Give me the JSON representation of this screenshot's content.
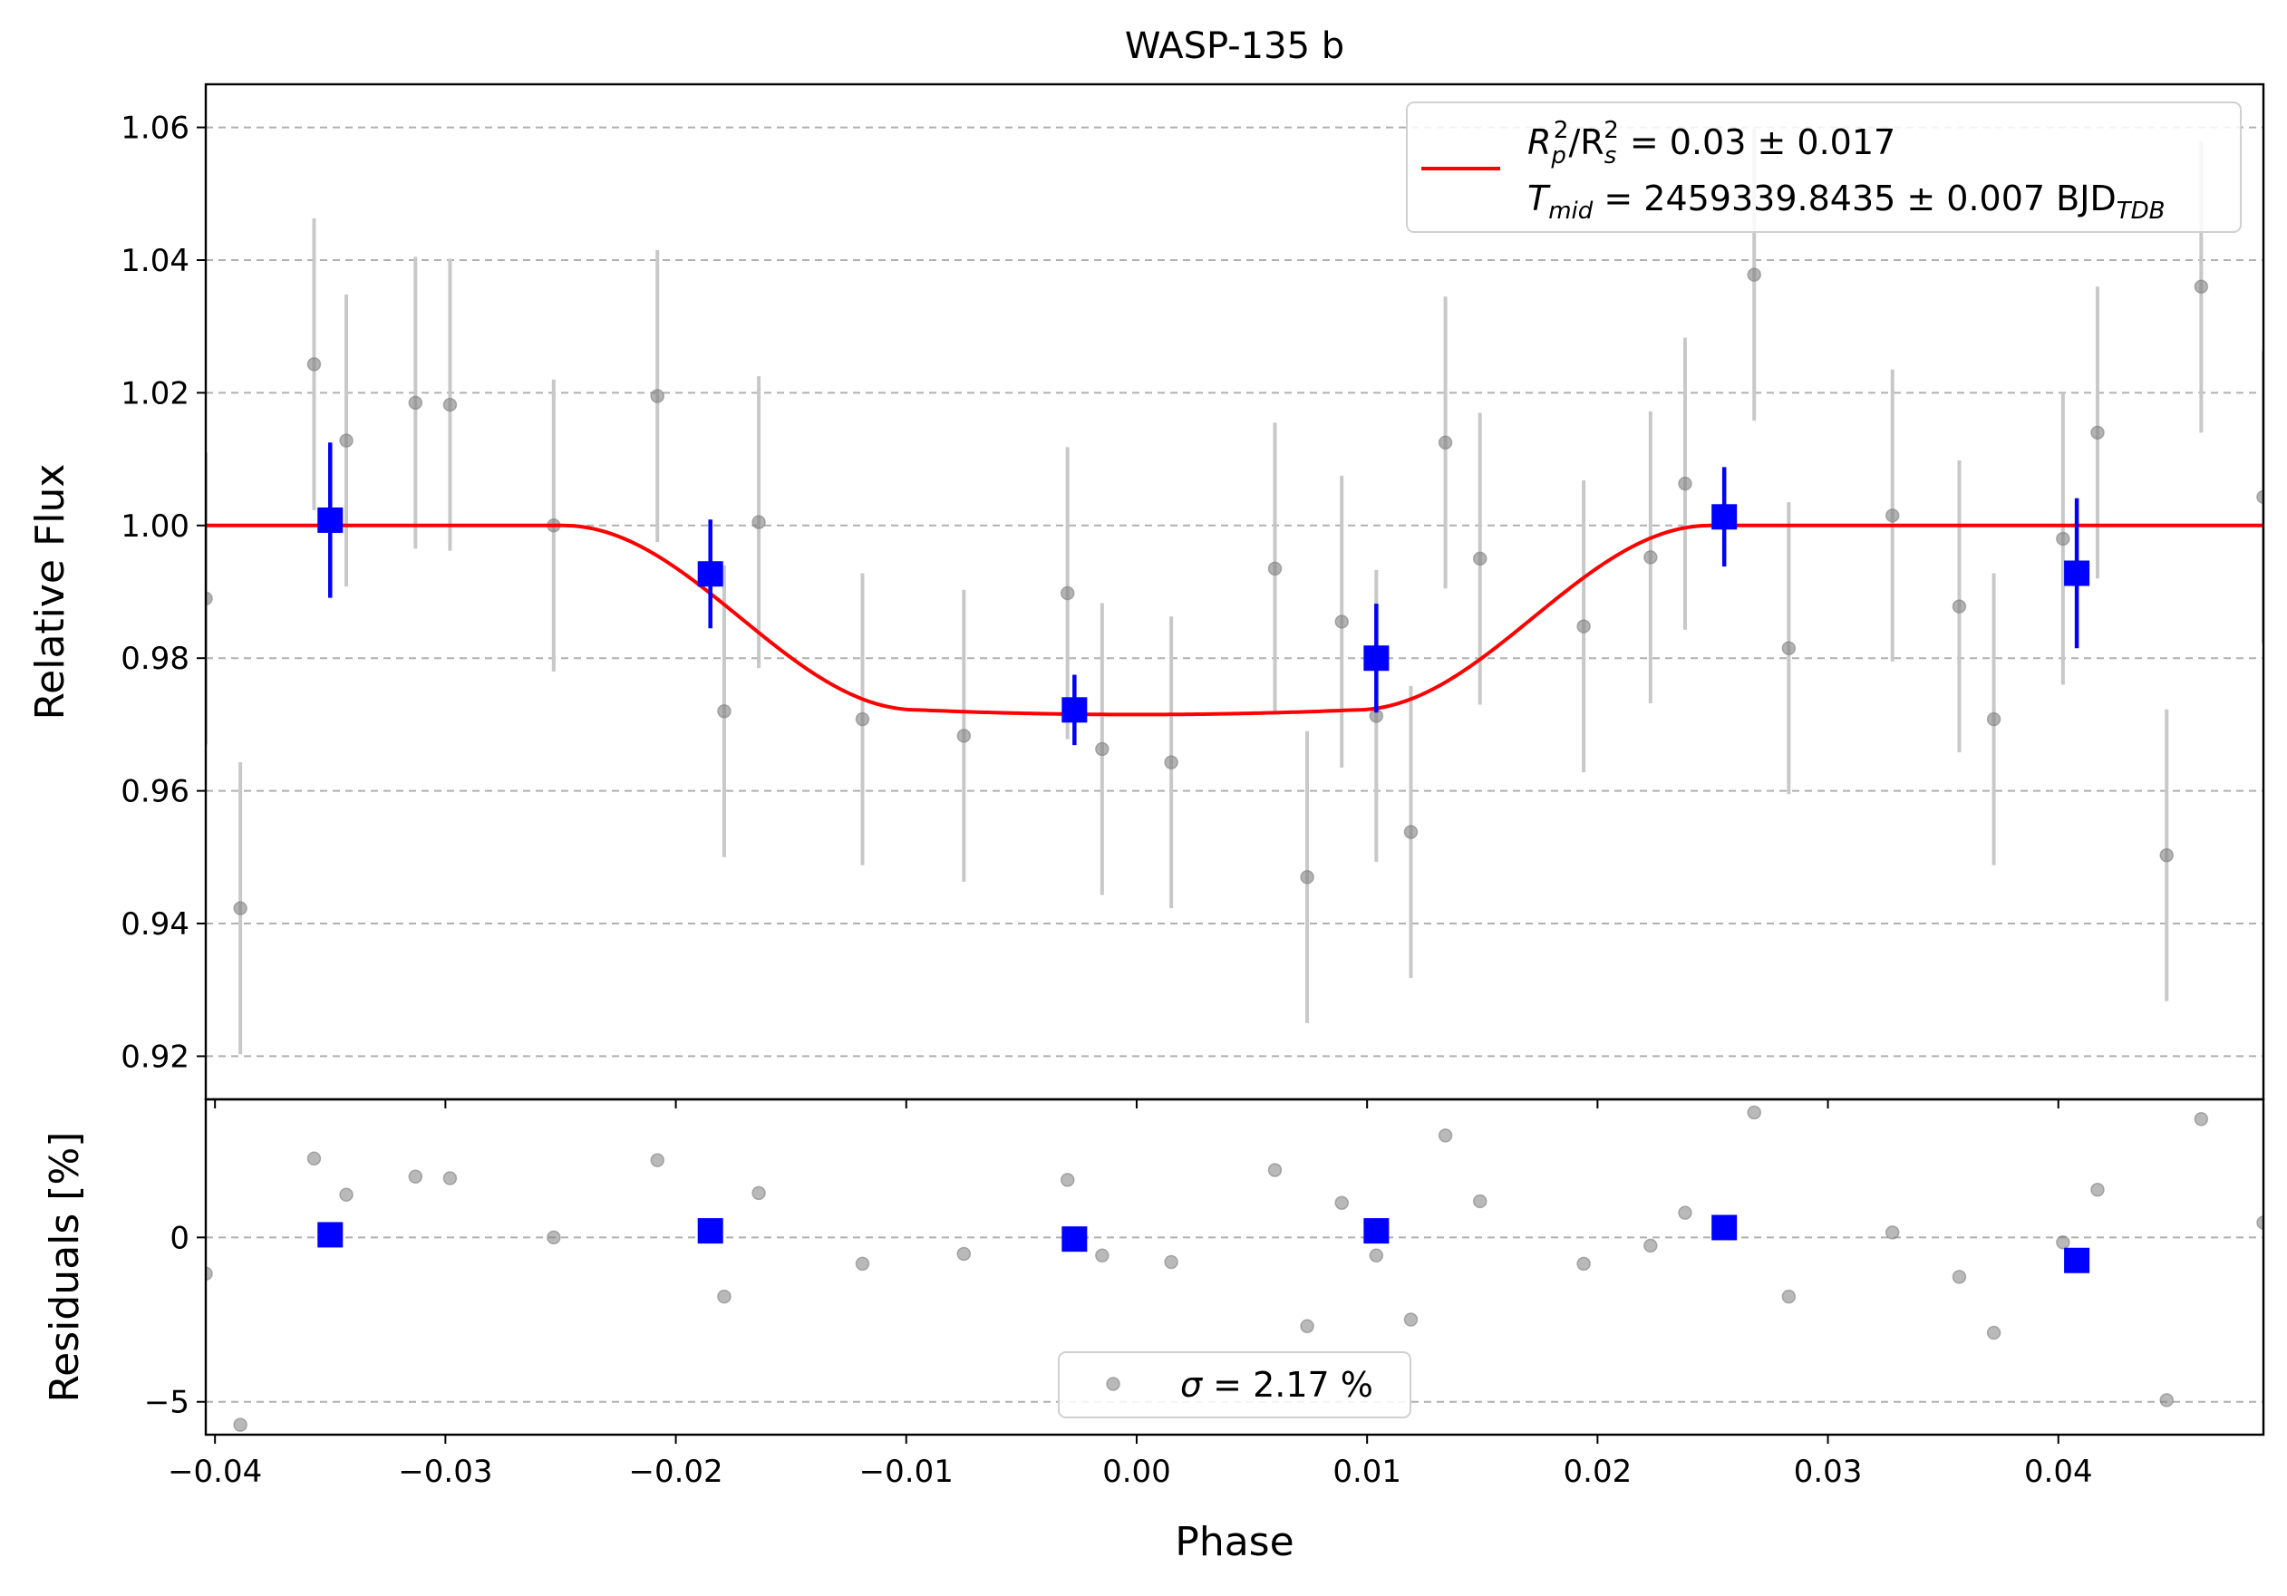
{
  "chart_data": {
    "type": "scatter",
    "title": "WASP-135 b",
    "xlabel": "Phase",
    "xlim": [
      -0.0404,
      0.0489
    ],
    "xticks": [
      -0.04,
      -0.03,
      -0.02,
      -0.01,
      0.0,
      0.01,
      0.02,
      0.03,
      0.04
    ],
    "xtick_labels": [
      "−0.04",
      "−0.03",
      "−0.02",
      "−0.01",
      "0.00",
      "0.01",
      "0.02",
      "0.03",
      "0.04"
    ],
    "top_panel": {
      "ylabel": "Relative Flux",
      "ylim": [
        0.9135,
        1.0665
      ],
      "yticks": [
        0.92,
        0.94,
        0.96,
        0.98,
        1.0,
        1.02,
        1.04,
        1.06
      ],
      "ytick_labels": [
        "0.92",
        "0.94",
        "0.96",
        "0.98",
        "1.00",
        "1.02",
        "1.04",
        "1.06"
      ],
      "grid": true,
      "legend_position": "top-right",
      "model": {
        "depth": 0.0278,
        "contact_1": -0.0249,
        "contact_2": -0.0095,
        "contact_3": 0.0095,
        "contact_4": 0.0249,
        "color": "#ff0000"
      },
      "legend": {
        "line1": {
          "prefix": "R",
          "sub1": "p",
          "sup1": "2",
          "mid": "/R",
          "sub2": "s",
          "sup2": "2",
          "rest": " = 0.03 ± 0.017"
        },
        "line2": {
          "prefix": "T",
          "sub1": "mid",
          "rest": " = 2459339.8435 ± 0.007 BJD",
          "sub2": "TDB"
        }
      },
      "raw_color": "#808080",
      "raw_errbar_color": "#c8c8c8",
      "binned_color": "#0000ff",
      "raw": [
        {
          "x": -0.0404,
          "y": 0.989,
          "err": 0.022
        },
        {
          "x": -0.0389,
          "y": 0.9423,
          "err": 0.022
        },
        {
          "x": -0.0357,
          "y": 1.0243,
          "err": 0.022
        },
        {
          "x": -0.0343,
          "y": 1.0128,
          "err": 0.022
        },
        {
          "x": -0.0313,
          "y": 1.0185,
          "err": 0.022
        },
        {
          "x": -0.0298,
          "y": 1.0182,
          "err": 0.022
        },
        {
          "x": -0.0253,
          "y": 1.0,
          "err": 0.022
        },
        {
          "x": -0.0208,
          "y": 1.0195,
          "err": 0.022
        },
        {
          "x": -0.0179,
          "y": 0.972,
          "err": 0.022
        },
        {
          "x": -0.0164,
          "y": 1.0005,
          "err": 0.022
        },
        {
          "x": -0.0119,
          "y": 0.9708,
          "err": 0.022
        },
        {
          "x": -0.0075,
          "y": 0.9683,
          "err": 0.022
        },
        {
          "x": -0.003,
          "y": 0.9898,
          "err": 0.022
        },
        {
          "x": -0.0015,
          "y": 0.9663,
          "err": 0.022
        },
        {
          "x": 0.0015,
          "y": 0.9643,
          "err": 0.022
        },
        {
          "x": 0.006,
          "y": 0.9935,
          "err": 0.022
        },
        {
          "x": 0.0074,
          "y": 0.947,
          "err": 0.022
        },
        {
          "x": 0.0089,
          "y": 0.9855,
          "err": 0.022
        },
        {
          "x": 0.0104,
          "y": 0.9713,
          "err": 0.022
        },
        {
          "x": 0.0119,
          "y": 0.9538,
          "err": 0.022
        },
        {
          "x": 0.0134,
          "y": 1.0125,
          "err": 0.022
        },
        {
          "x": 0.0149,
          "y": 0.995,
          "err": 0.022
        },
        {
          "x": 0.0194,
          "y": 0.9848,
          "err": 0.022
        },
        {
          "x": 0.0223,
          "y": 0.9952,
          "err": 0.022
        },
        {
          "x": 0.0238,
          "y": 1.0063,
          "err": 0.022
        },
        {
          "x": 0.0268,
          "y": 1.0378,
          "err": 0.022
        },
        {
          "x": 0.0283,
          "y": 0.9815,
          "err": 0.022
        },
        {
          "x": 0.0328,
          "y": 1.0015,
          "err": 0.022
        },
        {
          "x": 0.0357,
          "y": 0.9878,
          "err": 0.022
        },
        {
          "x": 0.0372,
          "y": 0.9708,
          "err": 0.022
        },
        {
          "x": 0.0402,
          "y": 0.998,
          "err": 0.022
        },
        {
          "x": 0.0417,
          "y": 1.014,
          "err": 0.022
        },
        {
          "x": 0.0447,
          "y": 0.9503,
          "err": 0.022
        },
        {
          "x": 0.0462,
          "y": 1.036,
          "err": 0.022
        },
        {
          "x": 0.0489,
          "y": 1.0043,
          "err": 0.022
        }
      ],
      "binned": [
        {
          "x": -0.035,
          "y": 1.0008,
          "err": 0.0117
        },
        {
          "x": -0.0185,
          "y": 0.9927,
          "err": 0.0082
        },
        {
          "x": -0.0027,
          "y": 0.9722,
          "err": 0.0053
        },
        {
          "x": 0.0104,
          "y": 0.98,
          "err": 0.0082
        },
        {
          "x": 0.0255,
          "y": 1.0013,
          "err": 0.0075
        },
        {
          "x": 0.0408,
          "y": 0.9928,
          "err": 0.0113
        }
      ]
    },
    "bottom_panel": {
      "ylabel": "Residuals [%]",
      "ylim": [
        -6.0,
        4.2
      ],
      "yticks": [
        -5,
        0
      ],
      "ytick_labels": [
        "−5",
        "0"
      ],
      "grid": true,
      "legend_position": "bottom-center",
      "legend": {
        "symbol": "σ",
        "rest": " = 2.17 %"
      },
      "raw": [
        {
          "x": -0.0404,
          "y": -1.1
        },
        {
          "x": -0.0389,
          "y": -5.7
        },
        {
          "x": -0.0357,
          "y": 2.4
        },
        {
          "x": -0.0343,
          "y": 1.3
        },
        {
          "x": -0.0313,
          "y": 1.85
        },
        {
          "x": -0.0298,
          "y": 1.8
        },
        {
          "x": -0.0253,
          "y": 0.0
        },
        {
          "x": -0.0208,
          "y": 2.35
        },
        {
          "x": -0.0179,
          "y": -1.8
        },
        {
          "x": -0.0164,
          "y": 1.35
        },
        {
          "x": -0.0119,
          "y": -0.8
        },
        {
          "x": -0.0075,
          "y": -0.5
        },
        {
          "x": -0.003,
          "y": 1.75
        },
        {
          "x": -0.0015,
          "y": -0.55
        },
        {
          "x": 0.0015,
          "y": -0.75
        },
        {
          "x": 0.006,
          "y": 2.05
        },
        {
          "x": 0.0074,
          "y": -2.7
        },
        {
          "x": 0.0089,
          "y": 1.05
        },
        {
          "x": 0.0104,
          "y": -0.55
        },
        {
          "x": 0.0119,
          "y": -2.5
        },
        {
          "x": 0.0134,
          "y": 3.1
        },
        {
          "x": 0.0149,
          "y": 1.1
        },
        {
          "x": 0.0194,
          "y": -0.8
        },
        {
          "x": 0.0223,
          "y": -0.25
        },
        {
          "x": 0.0238,
          "y": 0.75
        },
        {
          "x": 0.0268,
          "y": 3.8
        },
        {
          "x": 0.0283,
          "y": -1.8
        },
        {
          "x": 0.0328,
          "y": 0.15
        },
        {
          "x": 0.0357,
          "y": -1.2
        },
        {
          "x": 0.0372,
          "y": -2.9
        },
        {
          "x": 0.0402,
          "y": -0.15
        },
        {
          "x": 0.0417,
          "y": 1.45
        },
        {
          "x": 0.0447,
          "y": -4.95
        },
        {
          "x": 0.0462,
          "y": 3.6
        },
        {
          "x": 0.0489,
          "y": 0.45
        }
      ],
      "binned": [
        {
          "x": -0.035,
          "y": 0.08
        },
        {
          "x": -0.0185,
          "y": 0.2
        },
        {
          "x": -0.0027,
          "y": -0.05
        },
        {
          "x": 0.0104,
          "y": 0.2
        },
        {
          "x": 0.0255,
          "y": 0.3
        },
        {
          "x": 0.0408,
          "y": -0.7
        }
      ]
    }
  }
}
